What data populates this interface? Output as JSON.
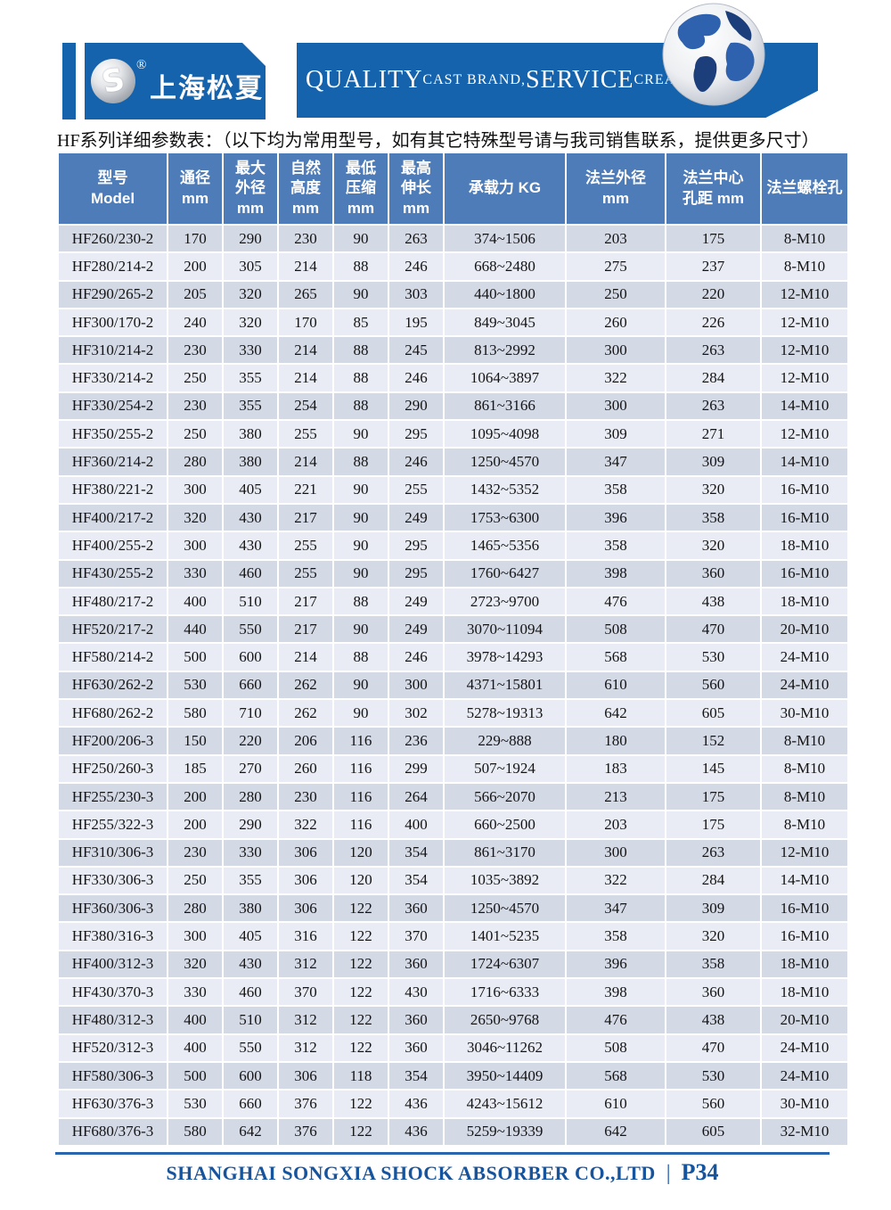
{
  "header": {
    "brand_name": "上海松夏",
    "registered_mark": "®",
    "logo_monogram": "S",
    "tagline_segments": [
      {
        "text": "QUALITY",
        "size": "large"
      },
      {
        "text": " CAST BRAND,",
        "size": "small"
      },
      {
        "text": "SERVICE",
        "size": "large"
      },
      {
        "text": " CREAT VALUE",
        "size": "small"
      }
    ]
  },
  "subtitle": "HF系列详细参数表：（以下均为常用型号，如有其它特殊型号请与我司销售联系，提供更多尺寸）",
  "table": {
    "columns": [
      {
        "lines": [
          "型号",
          "Model"
        ]
      },
      {
        "lines": [
          "通径",
          "mm"
        ]
      },
      {
        "lines": [
          "最大",
          "外径",
          "mm"
        ]
      },
      {
        "lines": [
          "自然",
          "高度",
          "mm"
        ]
      },
      {
        "lines": [
          "最低",
          "压缩",
          "mm"
        ]
      },
      {
        "lines": [
          "最高",
          "伸长",
          "mm"
        ]
      },
      {
        "lines": [
          "承载力 KG"
        ]
      },
      {
        "lines": [
          "法兰外径",
          "mm"
        ]
      },
      {
        "lines": [
          "法兰中心",
          "孔距 mm"
        ]
      },
      {
        "lines": [
          "法兰螺栓孔"
        ]
      }
    ],
    "rows": [
      [
        "HF260/230-2",
        "170",
        "290",
        "230",
        "90",
        "263",
        "374~1506",
        "203",
        "175",
        "8-M10"
      ],
      [
        "HF280/214-2",
        "200",
        "305",
        "214",
        "88",
        "246",
        "668~2480",
        "275",
        "237",
        "8-M10"
      ],
      [
        "HF290/265-2",
        "205",
        "320",
        "265",
        "90",
        "303",
        "440~1800",
        "250",
        "220",
        "12-M10"
      ],
      [
        "HF300/170-2",
        "240",
        "320",
        "170",
        "85",
        "195",
        "849~3045",
        "260",
        "226",
        "12-M10"
      ],
      [
        "HF310/214-2",
        "230",
        "330",
        "214",
        "88",
        "245",
        "813~2992",
        "300",
        "263",
        "12-M10"
      ],
      [
        "HF330/214-2",
        "250",
        "355",
        "214",
        "88",
        "246",
        "1064~3897",
        "322",
        "284",
        "12-M10"
      ],
      [
        "HF330/254-2",
        "230",
        "355",
        "254",
        "88",
        "290",
        "861~3166",
        "300",
        "263",
        "14-M10"
      ],
      [
        "HF350/255-2",
        "250",
        "380",
        "255",
        "90",
        "295",
        "1095~4098",
        "309",
        "271",
        "12-M10"
      ],
      [
        "HF360/214-2",
        "280",
        "380",
        "214",
        "88",
        "246",
        "1250~4570",
        "347",
        "309",
        "14-M10"
      ],
      [
        "HF380/221-2",
        "300",
        "405",
        "221",
        "90",
        "255",
        "1432~5352",
        "358",
        "320",
        "16-M10"
      ],
      [
        "HF400/217-2",
        "320",
        "430",
        "217",
        "90",
        "249",
        "1753~6300",
        "396",
        "358",
        "16-M10"
      ],
      [
        "HF400/255-2",
        "300",
        "430",
        "255",
        "90",
        "295",
        "1465~5356",
        "358",
        "320",
        "18-M10"
      ],
      [
        "HF430/255-2",
        "330",
        "460",
        "255",
        "90",
        "295",
        "1760~6427",
        "398",
        "360",
        "16-M10"
      ],
      [
        "HF480/217-2",
        "400",
        "510",
        "217",
        "88",
        "249",
        "2723~9700",
        "476",
        "438",
        "18-M10"
      ],
      [
        "HF520/217-2",
        "440",
        "550",
        "217",
        "90",
        "249",
        "3070~11094",
        "508",
        "470",
        "20-M10"
      ],
      [
        "HF580/214-2",
        "500",
        "600",
        "214",
        "88",
        "246",
        "3978~14293",
        "568",
        "530",
        "24-M10"
      ],
      [
        "HF630/262-2",
        "530",
        "660",
        "262",
        "90",
        "300",
        "4371~15801",
        "610",
        "560",
        "24-M10"
      ],
      [
        "HF680/262-2",
        "580",
        "710",
        "262",
        "90",
        "302",
        "5278~19313",
        "642",
        "605",
        "30-M10"
      ],
      [
        "HF200/206-3",
        "150",
        "220",
        "206",
        "116",
        "236",
        "229~888",
        "180",
        "152",
        "8-M10"
      ],
      [
        "HF250/260-3",
        "185",
        "270",
        "260",
        "116",
        "299",
        "507~1924",
        "183",
        "145",
        "8-M10"
      ],
      [
        "HF255/230-3",
        "200",
        "280",
        "230",
        "116",
        "264",
        "566~2070",
        "213",
        "175",
        "8-M10"
      ],
      [
        "HF255/322-3",
        "200",
        "290",
        "322",
        "116",
        "400",
        "660~2500",
        "203",
        "175",
        "8-M10"
      ],
      [
        "HF310/306-3",
        "230",
        "330",
        "306",
        "120",
        "354",
        "861~3170",
        "300",
        "263",
        "12-M10"
      ],
      [
        "HF330/306-3",
        "250",
        "355",
        "306",
        "120",
        "354",
        "1035~3892",
        "322",
        "284",
        "14-M10"
      ],
      [
        "HF360/306-3",
        "280",
        "380",
        "306",
        "122",
        "360",
        "1250~4570",
        "347",
        "309",
        "16-M10"
      ],
      [
        "HF380/316-3",
        "300",
        "405",
        "316",
        "122",
        "370",
        "1401~5235",
        "358",
        "320",
        "16-M10"
      ],
      [
        "HF400/312-3",
        "320",
        "430",
        "312",
        "122",
        "360",
        "1724~6307",
        "396",
        "358",
        "18-M10"
      ],
      [
        "HF430/370-3",
        "330",
        "460",
        "370",
        "122",
        "430",
        "1716~6333",
        "398",
        "360",
        "18-M10"
      ],
      [
        "HF480/312-3",
        "400",
        "510",
        "312",
        "122",
        "360",
        "2650~9768",
        "476",
        "438",
        "20-M10"
      ],
      [
        "HF520/312-3",
        "400",
        "550",
        "312",
        "122",
        "360",
        "3046~11262",
        "508",
        "470",
        "24-M10"
      ],
      [
        "HF580/306-3",
        "500",
        "600",
        "306",
        "118",
        "354",
        "3950~14409",
        "568",
        "530",
        "24-M10"
      ],
      [
        "HF630/376-3",
        "530",
        "660",
        "376",
        "122",
        "436",
        "4243~15612",
        "610",
        "560",
        "30-M10"
      ],
      [
        "HF680/376-3",
        "580",
        "642",
        "376",
        "122",
        "436",
        "5259~19339",
        "642",
        "605",
        "32-M10"
      ]
    ]
  },
  "footer": {
    "company": "SHANGHAI SONGXIA SHOCK ABSORBER CO.,LTD",
    "divider": "|",
    "page": "P34"
  },
  "colors": {
    "banner_blue": "#1563ac",
    "header_blue": "#4d7cb8",
    "row_dark": "#d4d9e6",
    "row_light": "#e9ecf4",
    "footer_blue": "#17549e",
    "footer_line": "#2a66ad"
  }
}
